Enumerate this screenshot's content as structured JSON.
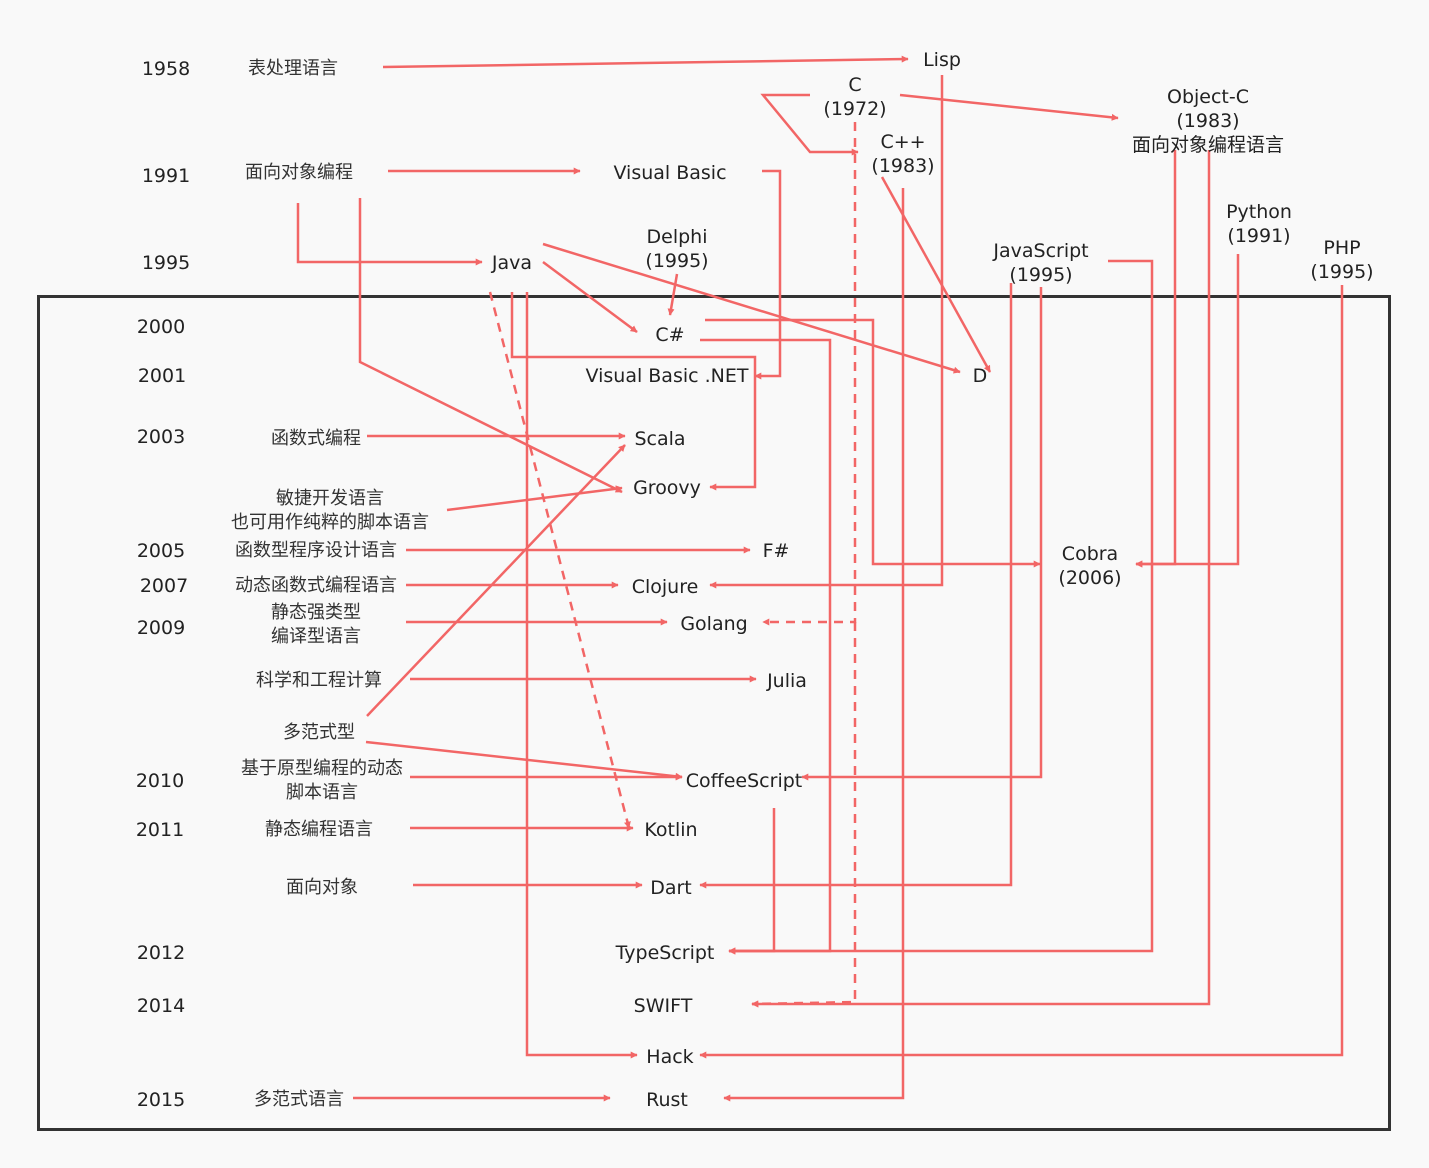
{
  "years": [
    {
      "id": "y1958",
      "text": "1958"
    },
    {
      "id": "y1991",
      "text": "1991"
    },
    {
      "id": "y1995",
      "text": "1995"
    },
    {
      "id": "y2000",
      "text": "2000"
    },
    {
      "id": "y2001",
      "text": "2001"
    },
    {
      "id": "y2003",
      "text": "2003"
    },
    {
      "id": "y2005",
      "text": "2005"
    },
    {
      "id": "y2007",
      "text": "2007"
    },
    {
      "id": "y2009",
      "text": "2009"
    },
    {
      "id": "y2010",
      "text": "2010"
    },
    {
      "id": "y2011",
      "text": "2011"
    },
    {
      "id": "y2012",
      "text": "2012"
    },
    {
      "id": "y2014",
      "text": "2014"
    },
    {
      "id": "y2015",
      "text": "2015"
    }
  ],
  "paradigms": [
    {
      "id": "p-list",
      "lines": [
        "表处理语言"
      ]
    },
    {
      "id": "p-oop",
      "lines": [
        "面向对象编程"
      ]
    },
    {
      "id": "p-func",
      "lines": [
        "函数式编程"
      ]
    },
    {
      "id": "p-agile",
      "lines": [
        "敏捷开发语言",
        "也可用作纯粹的脚本语言"
      ]
    },
    {
      "id": "p-funcdesign",
      "lines": [
        "函数型程序设计语言"
      ]
    },
    {
      "id": "p-dynfunc",
      "lines": [
        "动态函数式编程语言"
      ]
    },
    {
      "id": "p-static",
      "lines": [
        "静态强类型",
        "编译型语言"
      ]
    },
    {
      "id": "p-sci",
      "lines": [
        "科学和工程计算"
      ]
    },
    {
      "id": "p-multi",
      "lines": [
        "多范式型"
      ]
    },
    {
      "id": "p-proto",
      "lines": [
        "基于原型编程的动态",
        "脚本语言"
      ]
    },
    {
      "id": "p-staticlang",
      "lines": [
        "静态编程语言"
      ]
    },
    {
      "id": "p-oo",
      "lines": [
        "面向对象"
      ]
    },
    {
      "id": "p-multilang",
      "lines": [
        "多范式语言"
      ]
    }
  ],
  "languages": [
    {
      "id": "lisp",
      "lines": [
        "Lisp"
      ]
    },
    {
      "id": "c",
      "lines": [
        "C",
        "(1972)"
      ]
    },
    {
      "id": "cpp",
      "lines": [
        "C++",
        "(1983)"
      ]
    },
    {
      "id": "objc",
      "lines": [
        "Object-C",
        "(1983)",
        "面向对象编程语言"
      ]
    },
    {
      "id": "vb",
      "lines": [
        "Visual Basic"
      ]
    },
    {
      "id": "java",
      "lines": [
        "Java"
      ]
    },
    {
      "id": "delphi",
      "lines": [
        "Delphi",
        "(1995)"
      ]
    },
    {
      "id": "javascript",
      "lines": [
        "JavaScript",
        "(1995)"
      ]
    },
    {
      "id": "python",
      "lines": [
        "Python",
        "(1991)"
      ]
    },
    {
      "id": "php",
      "lines": [
        "PHP",
        "(1995)"
      ]
    },
    {
      "id": "csharp",
      "lines": [
        "C#"
      ]
    },
    {
      "id": "vbnet",
      "lines": [
        "Visual Basic .NET"
      ]
    },
    {
      "id": "d",
      "lines": [
        "D"
      ]
    },
    {
      "id": "scala",
      "lines": [
        "Scala"
      ]
    },
    {
      "id": "groovy",
      "lines": [
        "Groovy"
      ]
    },
    {
      "id": "fsharp",
      "lines": [
        "F#"
      ]
    },
    {
      "id": "cobra",
      "lines": [
        "Cobra",
        "(2006)"
      ]
    },
    {
      "id": "clojure",
      "lines": [
        "Clojure"
      ]
    },
    {
      "id": "golang",
      "lines": [
        "Golang"
      ]
    },
    {
      "id": "julia",
      "lines": [
        "Julia"
      ]
    },
    {
      "id": "coffeescript",
      "lines": [
        "CoffeeScript"
      ]
    },
    {
      "id": "kotlin",
      "lines": [
        "Kotlin"
      ]
    },
    {
      "id": "dart",
      "lines": [
        "Dart"
      ]
    },
    {
      "id": "typescript",
      "lines": [
        "TypeScript"
      ]
    },
    {
      "id": "swift",
      "lines": [
        "SWIFT"
      ]
    },
    {
      "id": "hack",
      "lines": [
        "Hack"
      ]
    },
    {
      "id": "rust",
      "lines": [
        "Rust"
      ]
    }
  ],
  "colors": {
    "arrow": "#f26666",
    "frame": "#333333",
    "background": "#f9f9f9"
  }
}
